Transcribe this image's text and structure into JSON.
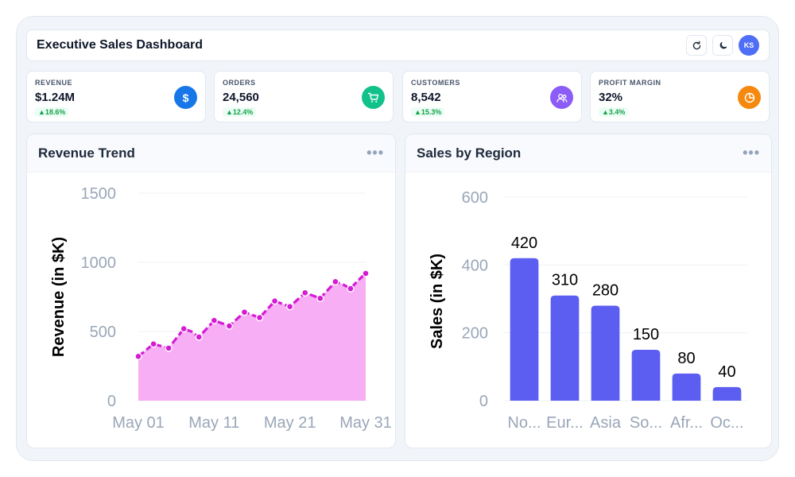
{
  "header": {
    "title": "Executive Sales Dashboard",
    "avatar_initials": "KS"
  },
  "kpis": [
    {
      "label": "REVENUE",
      "value": "$1.24M",
      "delta": "▲18.6%",
      "icon": "dollar-icon",
      "color": "#1877e8"
    },
    {
      "label": "ORDERS",
      "value": "24,560",
      "delta": "▲12.4%",
      "icon": "cart-icon",
      "color": "#10c28a"
    },
    {
      "label": "CUSTOMERS",
      "value": "8,542",
      "delta": "▲15.3%",
      "icon": "users-icon",
      "color": "#8b5cf6"
    },
    {
      "label": "PROFIT MARGIN",
      "value": "32%",
      "delta": "▲3.4%",
      "icon": "pie-icon",
      "color": "#f5890f"
    }
  ],
  "panels": {
    "revenue_title": "Revenue Trend",
    "region_title": "Sales by Region",
    "menu": "•••"
  },
  "chart_data": [
    {
      "type": "area",
      "title": "Revenue Trend",
      "ylabel": "Revenue (in $K)",
      "xlabel": "",
      "ylim": [
        0,
        1500
      ],
      "yticks": [
        "0",
        "500",
        "1000",
        "1500"
      ],
      "xtick_labels": [
        "May 01",
        "May 11",
        "May 21",
        "May 31"
      ],
      "x": [
        1,
        2,
        3,
        4,
        5,
        6,
        7,
        8,
        9,
        10,
        11,
        12,
        13,
        14,
        15,
        16,
        17,
        18,
        19,
        20,
        21,
        22,
        23,
        24,
        25,
        26,
        27,
        28,
        29,
        30,
        31
      ],
      "values": [
        320,
        365,
        410,
        395,
        380,
        450,
        520,
        500,
        460,
        520,
        580,
        560,
        540,
        590,
        640,
        620,
        600,
        660,
        720,
        700,
        680,
        730,
        780,
        760,
        740,
        800,
        860,
        840,
        810,
        870,
        920
      ],
      "marker_indices": [
        0,
        2,
        4,
        6,
        8,
        10,
        12,
        14,
        16,
        18,
        20,
        22,
        24,
        26,
        28,
        30
      ],
      "color": "#d41bd4",
      "fill": "#f7aef4",
      "grid": true
    },
    {
      "type": "bar",
      "title": "Sales by Region",
      "ylabel": "Sales (in $K)",
      "xlabel": "",
      "categories": [
        "No...",
        "Eur...",
        "Asia",
        "So...",
        "Afr...",
        "Oc..."
      ],
      "values": [
        420,
        310,
        280,
        150,
        80,
        40
      ],
      "value_labels": [
        "420",
        "310",
        "280",
        "150",
        "80",
        "40"
      ],
      "ylim": [
        0,
        600
      ],
      "yticks": [
        "0",
        "200",
        "400",
        "600"
      ],
      "color": "#5b5ef0",
      "grid": true
    }
  ]
}
